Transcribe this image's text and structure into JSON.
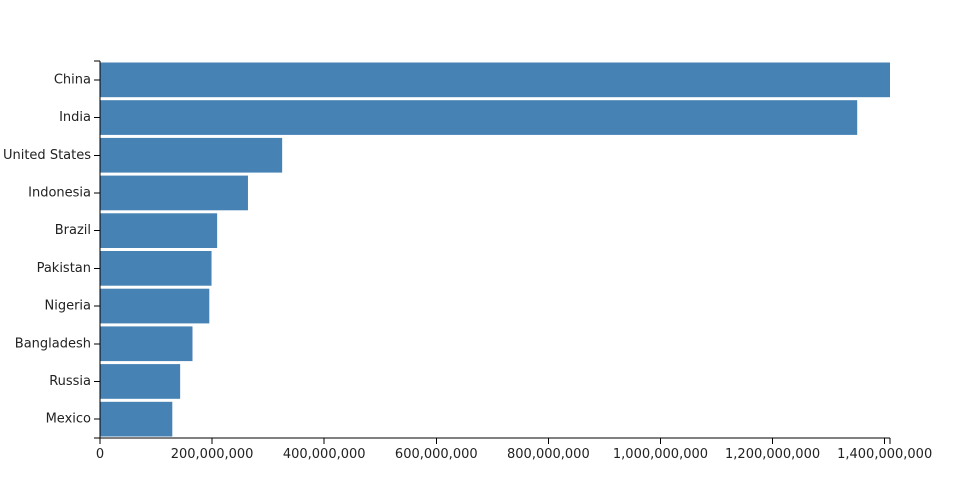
{
  "chart_data": {
    "type": "bar",
    "orientation": "horizontal",
    "title": "",
    "xlabel": "",
    "ylabel": "",
    "categories": [
      "China",
      "India",
      "United States",
      "Indonesia",
      "Brazil",
      "Pakistan",
      "Nigeria",
      "Bangladesh",
      "Russia",
      "Mexico"
    ],
    "values": [
      1409517397,
      1351000000,
      325000000,
      264000000,
      209000000,
      199000000,
      195000000,
      165000000,
      143000000,
      129000000
    ],
    "xlim": [
      0,
      1409517397
    ],
    "x_ticks": [
      0,
      200000000,
      400000000,
      600000000,
      800000000,
      1000000000,
      1200000000,
      1400000000
    ],
    "x_tick_labels": [
      "0",
      "200,000,000",
      "400,000,000",
      "600,000,000",
      "800,000,000",
      "1,000,000,000",
      "1,200,000,000",
      "1,400,000,000"
    ],
    "grid": false,
    "legend": "none",
    "bar_color": "#4682b4",
    "axis_color": "#000000",
    "label_color": "#222222"
  }
}
